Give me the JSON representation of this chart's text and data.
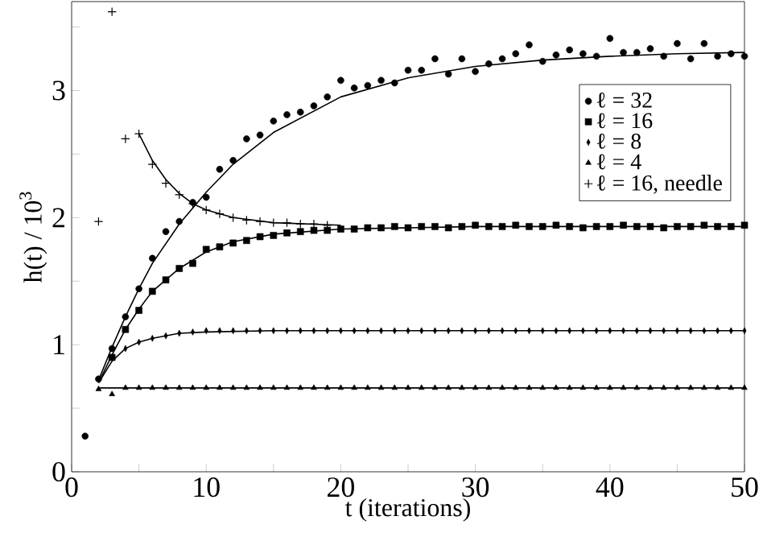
{
  "chart_data": {
    "type": "scatter",
    "xlabel": "t (iterations)",
    "ylabel": "h(t) / 10$^{3}$",
    "legend": "right",
    "xlim": [
      0,
      50
    ],
    "ylim": [
      0,
      3.7
    ],
    "xticks": [
      0,
      {
        "value": 5,
        "label": null
      },
      10,
      {
        "value": 15,
        "label": null
      },
      20,
      {
        "value": 25,
        "label": null
      },
      30,
      {
        "value": 35,
        "label": null
      },
      40,
      {
        "value": 45,
        "label": null
      },
      50
    ],
    "yticks": [
      0,
      {
        "value": 0.5,
        "label": null
      },
      1,
      {
        "value": 1.5,
        "label": null
      },
      2,
      {
        "value": 2.5,
        "label": null
      },
      3,
      {
        "value": 3.5,
        "label": null
      }
    ],
    "x": [
      1,
      2,
      3,
      4,
      5,
      6,
      7,
      8,
      9,
      10,
      11,
      12,
      13,
      14,
      15,
      16,
      17,
      18,
      19,
      20,
      21,
      22,
      23,
      24,
      25,
      26,
      27,
      28,
      29,
      30,
      31,
      32,
      33,
      34,
      35,
      36,
      37,
      38,
      39,
      40,
      41,
      42,
      43,
      44,
      45,
      46,
      47,
      48,
      49,
      50
    ],
    "series": [
      {
        "name": "ℓ = 32",
        "color": "#000000",
        "marker": "circle",
        "values": [
          0.28,
          0.73,
          0.97,
          1.22,
          1.44,
          1.68,
          1.89,
          1.97,
          2.12,
          2.16,
          2.38,
          2.45,
          2.62,
          2.65,
          2.76,
          2.81,
          2.83,
          2.88,
          2.95,
          3.08,
          3.02,
          3.04,
          3.08,
          3.06,
          3.16,
          3.16,
          3.25,
          3.13,
          3.25,
          3.15,
          3.21,
          3.25,
          3.29,
          3.36,
          3.23,
          3.28,
          3.32,
          3.29,
          3.27,
          3.41,
          3.3,
          3.3,
          3.33,
          3.27,
          3.37,
          3.25,
          3.37,
          3.27,
          3.29,
          3.27
        ]
      },
      {
        "name": "ℓ = 16",
        "color": "#000000",
        "marker": "square",
        "values": [
          null,
          null,
          0.9,
          1.12,
          1.27,
          1.42,
          1.51,
          1.6,
          1.64,
          1.75,
          1.77,
          1.8,
          1.82,
          1.85,
          1.86,
          1.88,
          1.89,
          1.9,
          1.9,
          1.91,
          1.91,
          1.92,
          1.92,
          1.93,
          1.92,
          1.93,
          1.93,
          1.92,
          1.93,
          1.94,
          1.93,
          1.93,
          1.94,
          1.93,
          1.93,
          1.94,
          1.93,
          1.92,
          1.93,
          1.93,
          1.94,
          1.93,
          1.93,
          1.92,
          1.93,
          1.93,
          1.94,
          1.93,
          1.93,
          1.94
        ]
      },
      {
        "name": "ℓ = 8",
        "color": "#000000",
        "marker": "diamond",
        "values": [
          null,
          null,
          null,
          0.97,
          1.02,
          1.05,
          1.07,
          1.09,
          1.1,
          1.11,
          1.11,
          1.11,
          1.11,
          1.11,
          1.11,
          1.11,
          1.11,
          1.11,
          1.11,
          1.11,
          1.11,
          1.11,
          1.11,
          1.11,
          1.11,
          1.11,
          1.11,
          1.11,
          1.11,
          1.11,
          1.11,
          1.11,
          1.11,
          1.11,
          1.11,
          1.11,
          1.11,
          1.11,
          1.11,
          1.11,
          1.11,
          1.11,
          1.11,
          1.11,
          1.11,
          1.11,
          1.11,
          1.11,
          1.11,
          1.11
        ]
      },
      {
        "name": "ℓ = 4",
        "color": "#000000",
        "marker": "triangle",
        "values": [
          null,
          0.65,
          0.61,
          0.66,
          0.66,
          0.66,
          0.66,
          0.66,
          0.66,
          0.66,
          0.66,
          0.66,
          0.66,
          0.66,
          0.66,
          0.66,
          0.66,
          0.66,
          0.66,
          0.66,
          0.66,
          0.66,
          0.66,
          0.66,
          0.66,
          0.66,
          0.66,
          0.66,
          0.66,
          0.66,
          0.66,
          0.66,
          0.66,
          0.66,
          0.66,
          0.66,
          0.66,
          0.66,
          0.66,
          0.66,
          0.66,
          0.66,
          0.66,
          0.66,
          0.66,
          0.66,
          0.66,
          0.66,
          0.66,
          0.66
        ]
      },
      {
        "name": "ℓ = 16, needle",
        "color": "#000000",
        "marker": "cross",
        "values": [
          null,
          1.97,
          3.62,
          2.62,
          2.66,
          2.42,
          2.27,
          2.18,
          2.11,
          2.06,
          2.03,
          2.0,
          1.98,
          1.97,
          1.96,
          1.96,
          1.95,
          1.95,
          1.94,
          null,
          null,
          null,
          null,
          null,
          null,
          null,
          null,
          null,
          null,
          null,
          null,
          null,
          null,
          null,
          null,
          null,
          null,
          null,
          null,
          null,
          null,
          null,
          null,
          null,
          null,
          null,
          null,
          null,
          null,
          null
        ]
      },
      {
        "type": "line",
        "color": "#000000",
        "marker": "none",
        "x": [
          2,
          3,
          4,
          5,
          6,
          8,
          10,
          12,
          15,
          20,
          25,
          30,
          35,
          40,
          45,
          50
        ],
        "values": [
          0.72,
          0.98,
          1.22,
          1.44,
          1.64,
          1.95,
          2.2,
          2.42,
          2.67,
          2.95,
          3.1,
          3.19,
          3.24,
          3.27,
          3.29,
          3.3
        ]
      },
      {
        "type": "line",
        "color": "#000000",
        "marker": "none",
        "x": [
          2,
          3,
          4,
          5,
          6,
          8,
          10,
          12,
          15,
          20,
          30,
          40,
          50
        ],
        "values": [
          0.7,
          0.92,
          1.12,
          1.28,
          1.42,
          1.6,
          1.73,
          1.81,
          1.87,
          1.91,
          1.93,
          1.93,
          1.93
        ]
      },
      {
        "type": "line",
        "color": "#000000",
        "marker": "none",
        "x": [
          2,
          3,
          4,
          5,
          6,
          8,
          10,
          15,
          20,
          50
        ],
        "values": [
          0.7,
          0.87,
          0.97,
          1.02,
          1.05,
          1.09,
          1.1,
          1.11,
          1.11,
          1.11
        ]
      },
      {
        "type": "line",
        "color": "#000000",
        "marker": "none",
        "x": [
          2,
          50
        ],
        "values": [
          0.66,
          0.66
        ]
      },
      {
        "type": "line",
        "color": "#000000",
        "marker": "none",
        "x": [
          5,
          6,
          7,
          8,
          9,
          10,
          12,
          15,
          20
        ],
        "values": [
          2.66,
          2.45,
          2.3,
          2.19,
          2.11,
          2.06,
          2.0,
          1.96,
          1.94
        ]
      }
    ]
  }
}
